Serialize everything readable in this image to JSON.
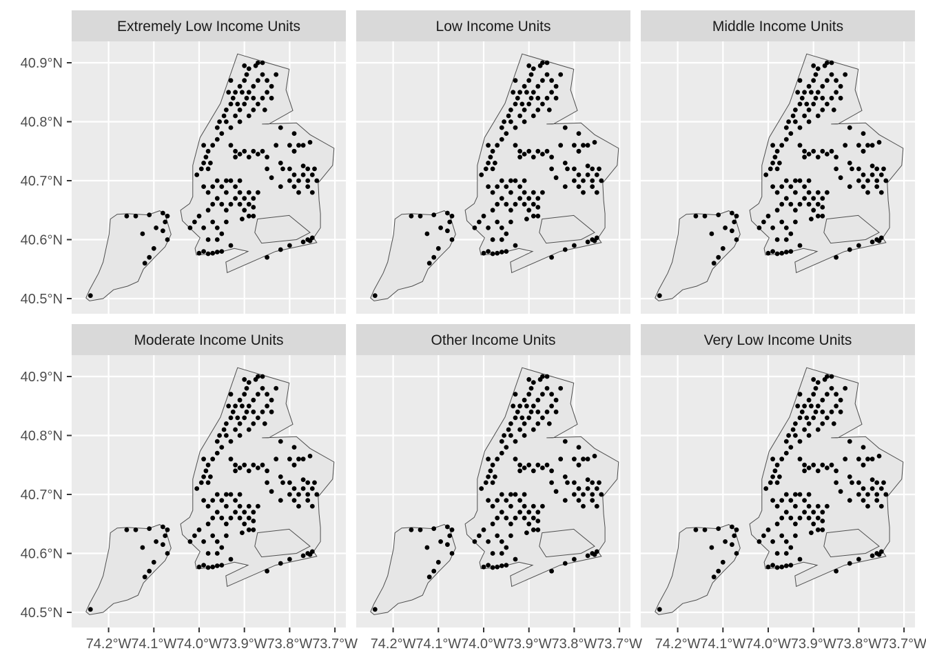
{
  "chart_data": {
    "type": "scatter",
    "subtype": "faceted map",
    "title": "",
    "xlabel": "",
    "ylabel": "",
    "grid": true,
    "colors": {
      "panel_bg": "#ebebeb",
      "strip_bg": "#d9d9d9",
      "land": "#e6e6e6",
      "outline": "#4d4d4d",
      "points": "#000000",
      "grid": "#ffffff"
    },
    "facets": [
      "Extremely Low Income Units",
      "Low Income Units",
      "Middle Income Units",
      "Moderate Income Units",
      "Other Income Units",
      "Very Low Income Units"
    ],
    "x_ticks": [
      {
        "value": -74.2,
        "label": "74.2°W"
      },
      {
        "value": -74.1,
        "label": "74.1°W"
      },
      {
        "value": -74.0,
        "label": "74.0°W"
      },
      {
        "value": -73.9,
        "label": "73.9°W"
      },
      {
        "value": -73.8,
        "label": "73.8°W"
      },
      {
        "value": -73.7,
        "label": "73.7°W"
      }
    ],
    "y_ticks": [
      {
        "value": 40.9,
        "label": "40.9°N"
      },
      {
        "value": 40.8,
        "label": "40.8°N"
      },
      {
        "value": 40.7,
        "label": "40.7°N"
      },
      {
        "value": 40.6,
        "label": "40.6°N"
      },
      {
        "value": 40.5,
        "label": "40.5°N"
      }
    ],
    "xlim": [
      -74.28,
      -73.67
    ],
    "ylim": [
      40.47,
      40.935
    ],
    "outlines": [
      [
        [
          -74.25,
          40.501
        ],
        [
          -74.242,
          40.515
        ],
        [
          -74.222,
          40.543
        ],
        [
          -74.212,
          40.562
        ],
        [
          -74.199,
          40.609
        ],
        [
          -74.196,
          40.635
        ],
        [
          -74.181,
          40.643
        ],
        [
          -74.158,
          40.644
        ],
        [
          -74.113,
          40.642
        ],
        [
          -74.087,
          40.649
        ],
        [
          -74.075,
          40.642
        ],
        [
          -74.062,
          40.609
        ],
        [
          -74.075,
          40.588
        ],
        [
          -74.097,
          40.571
        ],
        [
          -74.123,
          40.55
        ],
        [
          -74.135,
          40.529
        ],
        [
          -74.158,
          40.521
        ],
        [
          -74.189,
          40.515
        ],
        [
          -74.212,
          40.5
        ],
        [
          -74.242,
          40.496
        ]
      ],
      [
        [
          -73.915,
          40.915
        ],
        [
          -73.801,
          40.889
        ],
        [
          -73.808,
          40.854
        ],
        [
          -73.793,
          40.819
        ],
        [
          -73.846,
          40.796
        ],
        [
          -73.861,
          40.796
        ],
        [
          -73.785,
          40.798
        ],
        [
          -73.755,
          40.778
        ],
        [
          -73.702,
          40.755
        ],
        [
          -73.705,
          40.726
        ],
        [
          -73.737,
          40.696
        ],
        [
          -73.735,
          40.667
        ],
        [
          -73.732,
          40.644
        ],
        [
          -73.732,
          40.62
        ],
        [
          -73.747,
          40.603
        ],
        [
          -73.74,
          40.595
        ],
        [
          -73.831,
          40.58
        ],
        [
          -73.938,
          40.544
        ],
        [
          -73.941,
          40.562
        ],
        [
          -73.892,
          40.58
        ],
        [
          -73.922,
          40.585
        ],
        [
          -73.968,
          40.576
        ],
        [
          -74.006,
          40.574
        ],
        [
          -74.009,
          40.585
        ],
        [
          -73.998,
          40.603
        ],
        [
          -74.021,
          40.62
        ],
        [
          -74.037,
          40.632
        ],
        [
          -74.041,
          40.65
        ],
        [
          -74.021,
          40.661
        ],
        [
          -74.014,
          40.673
        ],
        [
          -74.014,
          40.726
        ],
        [
          -73.998,
          40.773
        ],
        [
          -73.953,
          40.831
        ]
      ],
      [
        [
          -73.871,
          40.635
        ],
        [
          -73.801,
          40.641
        ],
        [
          -73.755,
          40.612
        ],
        [
          -73.785,
          40.6
        ],
        [
          -73.862,
          40.594
        ],
        [
          -73.877,
          40.612
        ]
      ]
    ],
    "points": [
      [
        -73.94,
        40.8
      ],
      [
        -73.945,
        40.81
      ],
      [
        -73.94,
        40.82
      ],
      [
        -73.93,
        40.83
      ],
      [
        -73.925,
        40.84
      ],
      [
        -73.92,
        40.85
      ],
      [
        -73.91,
        40.86
      ],
      [
        -73.9,
        40.87
      ],
      [
        -73.895,
        40.88
      ],
      [
        -73.89,
        40.89
      ],
      [
        -73.87,
        40.9
      ],
      [
        -73.86,
        40.9
      ],
      [
        -73.91,
        40.82
      ],
      [
        -73.9,
        40.83
      ],
      [
        -73.895,
        40.84
      ],
      [
        -73.89,
        40.85
      ],
      [
        -73.88,
        40.86
      ],
      [
        -73.87,
        40.87
      ],
      [
        -73.86,
        40.88
      ],
      [
        -73.85,
        40.87
      ],
      [
        -73.84,
        40.86
      ],
      [
        -73.85,
        40.85
      ],
      [
        -73.86,
        40.84
      ],
      [
        -73.87,
        40.83
      ],
      [
        -73.88,
        40.82
      ],
      [
        -73.89,
        40.81
      ],
      [
        -73.91,
        40.8
      ],
      [
        -73.92,
        40.81
      ],
      [
        -73.93,
        40.79
      ],
      [
        -73.935,
        40.85
      ],
      [
        -73.93,
        40.87
      ],
      [
        -73.915,
        40.83
      ],
      [
        -73.905,
        40.85
      ],
      [
        -73.88,
        40.84
      ],
      [
        -73.84,
        40.84
      ],
      [
        -73.83,
        40.88
      ],
      [
        -73.855,
        40.82
      ],
      [
        -73.9,
        40.895
      ],
      [
        -73.875,
        40.895
      ],
      [
        -73.95,
        40.78
      ],
      [
        -73.96,
        40.77
      ],
      [
        -73.97,
        40.76
      ],
      [
        -73.98,
        40.75
      ],
      [
        -73.985,
        40.74
      ],
      [
        -73.99,
        40.73
      ],
      [
        -73.995,
        40.72
      ],
      [
        -74.005,
        40.71
      ],
      [
        -73.98,
        40.72
      ],
      [
        -73.975,
        40.73
      ],
      [
        -73.96,
        40.79
      ],
      [
        -73.955,
        40.8
      ],
      [
        -73.99,
        40.76
      ],
      [
        -73.93,
        40.76
      ],
      [
        -73.92,
        40.75
      ],
      [
        -73.91,
        40.745
      ],
      [
        -73.9,
        40.75
      ],
      [
        -73.88,
        40.75
      ],
      [
        -73.87,
        40.745
      ],
      [
        -73.86,
        40.75
      ],
      [
        -73.89,
        40.74
      ],
      [
        -73.92,
        40.74
      ],
      [
        -73.85,
        40.74
      ],
      [
        -73.83,
        40.76
      ],
      [
        -73.8,
        40.76
      ],
      [
        -73.79,
        40.75
      ],
      [
        -73.77,
        40.76
      ],
      [
        -73.82,
        40.73
      ],
      [
        -73.85,
        40.72
      ],
      [
        -73.84,
        40.705
      ],
      [
        -73.99,
        40.69
      ],
      [
        -73.98,
        40.68
      ],
      [
        -73.97,
        40.69
      ],
      [
        -73.96,
        40.7
      ],
      [
        -73.95,
        40.69
      ],
      [
        -73.94,
        40.68
      ],
      [
        -73.93,
        40.7
      ],
      [
        -73.92,
        40.69
      ],
      [
        -73.91,
        40.68
      ],
      [
        -73.9,
        40.67
      ],
      [
        -73.89,
        40.68
      ],
      [
        -73.88,
        40.67
      ],
      [
        -73.87,
        40.68
      ],
      [
        -73.96,
        40.67
      ],
      [
        -73.95,
        40.66
      ],
      [
        -73.94,
        40.65
      ],
      [
        -73.93,
        40.66
      ],
      [
        -73.92,
        40.67
      ],
      [
        -73.91,
        40.66
      ],
      [
        -73.9,
        40.65
      ],
      [
        -73.97,
        40.66
      ],
      [
        -73.98,
        40.65
      ],
      [
        -74.0,
        40.64
      ],
      [
        -74.01,
        40.63
      ],
      [
        -74.02,
        40.62
      ],
      [
        -73.99,
        40.62
      ],
      [
        -73.97,
        40.63
      ],
      [
        -73.96,
        40.62
      ],
      [
        -73.95,
        40.61
      ],
      [
        -73.96,
        40.6
      ],
      [
        -73.94,
        40.63
      ],
      [
        -73.98,
        40.6
      ],
      [
        -73.99,
        40.58
      ],
      [
        -73.98,
        40.576
      ],
      [
        -74.0,
        40.577
      ],
      [
        -73.97,
        40.577
      ],
      [
        -73.96,
        40.579
      ],
      [
        -73.95,
        40.58
      ],
      [
        -73.93,
        40.59
      ],
      [
        -73.94,
        40.7
      ],
      [
        -73.91,
        40.7
      ],
      [
        -73.89,
        40.66
      ],
      [
        -73.88,
        40.655
      ],
      [
        -73.905,
        40.635
      ],
      [
        -73.89,
        40.64
      ],
      [
        -73.88,
        40.64
      ],
      [
        -73.8,
        40.72
      ],
      [
        -73.79,
        40.71
      ],
      [
        -73.78,
        40.7
      ],
      [
        -73.77,
        40.71
      ],
      [
        -73.76,
        40.72
      ],
      [
        -73.75,
        40.71
      ],
      [
        -73.74,
        40.7
      ],
      [
        -73.76,
        40.69
      ],
      [
        -73.78,
        40.68
      ],
      [
        -73.75,
        40.68
      ],
      [
        -73.79,
        40.69
      ],
      [
        -73.77,
        40.725
      ],
      [
        -73.8,
        40.7
      ],
      [
        -73.82,
        40.69
      ],
      [
        -73.815,
        40.72
      ],
      [
        -73.76,
        40.7
      ],
      [
        -73.745,
        40.72
      ],
      [
        -73.79,
        40.75
      ],
      [
        -73.78,
        40.76
      ],
      [
        -73.755,
        40.765
      ],
      [
        -73.76,
        40.6
      ],
      [
        -73.755,
        40.598
      ],
      [
        -73.77,
        40.596
      ],
      [
        -73.75,
        40.603
      ],
      [
        -73.8,
        40.59
      ],
      [
        -73.82,
        40.583
      ],
      [
        -73.85,
        40.57
      ],
      [
        -74.24,
        40.505
      ],
      [
        -74.16,
        40.64
      ],
      [
        -74.14,
        40.64
      ],
      [
        -74.11,
        40.642
      ],
      [
        -74.08,
        40.645
      ],
      [
        -74.07,
        40.64
      ],
      [
        -74.075,
        40.63
      ],
      [
        -74.08,
        40.615
      ],
      [
        -74.07,
        40.6
      ],
      [
        -74.125,
        40.61
      ],
      [
        -74.1,
        40.585
      ],
      [
        -74.11,
        40.57
      ],
      [
        -74.12,
        40.56
      ],
      [
        -74.095,
        40.62
      ],
      [
        -73.82,
        40.79
      ],
      [
        -73.79,
        40.78
      ]
    ]
  }
}
